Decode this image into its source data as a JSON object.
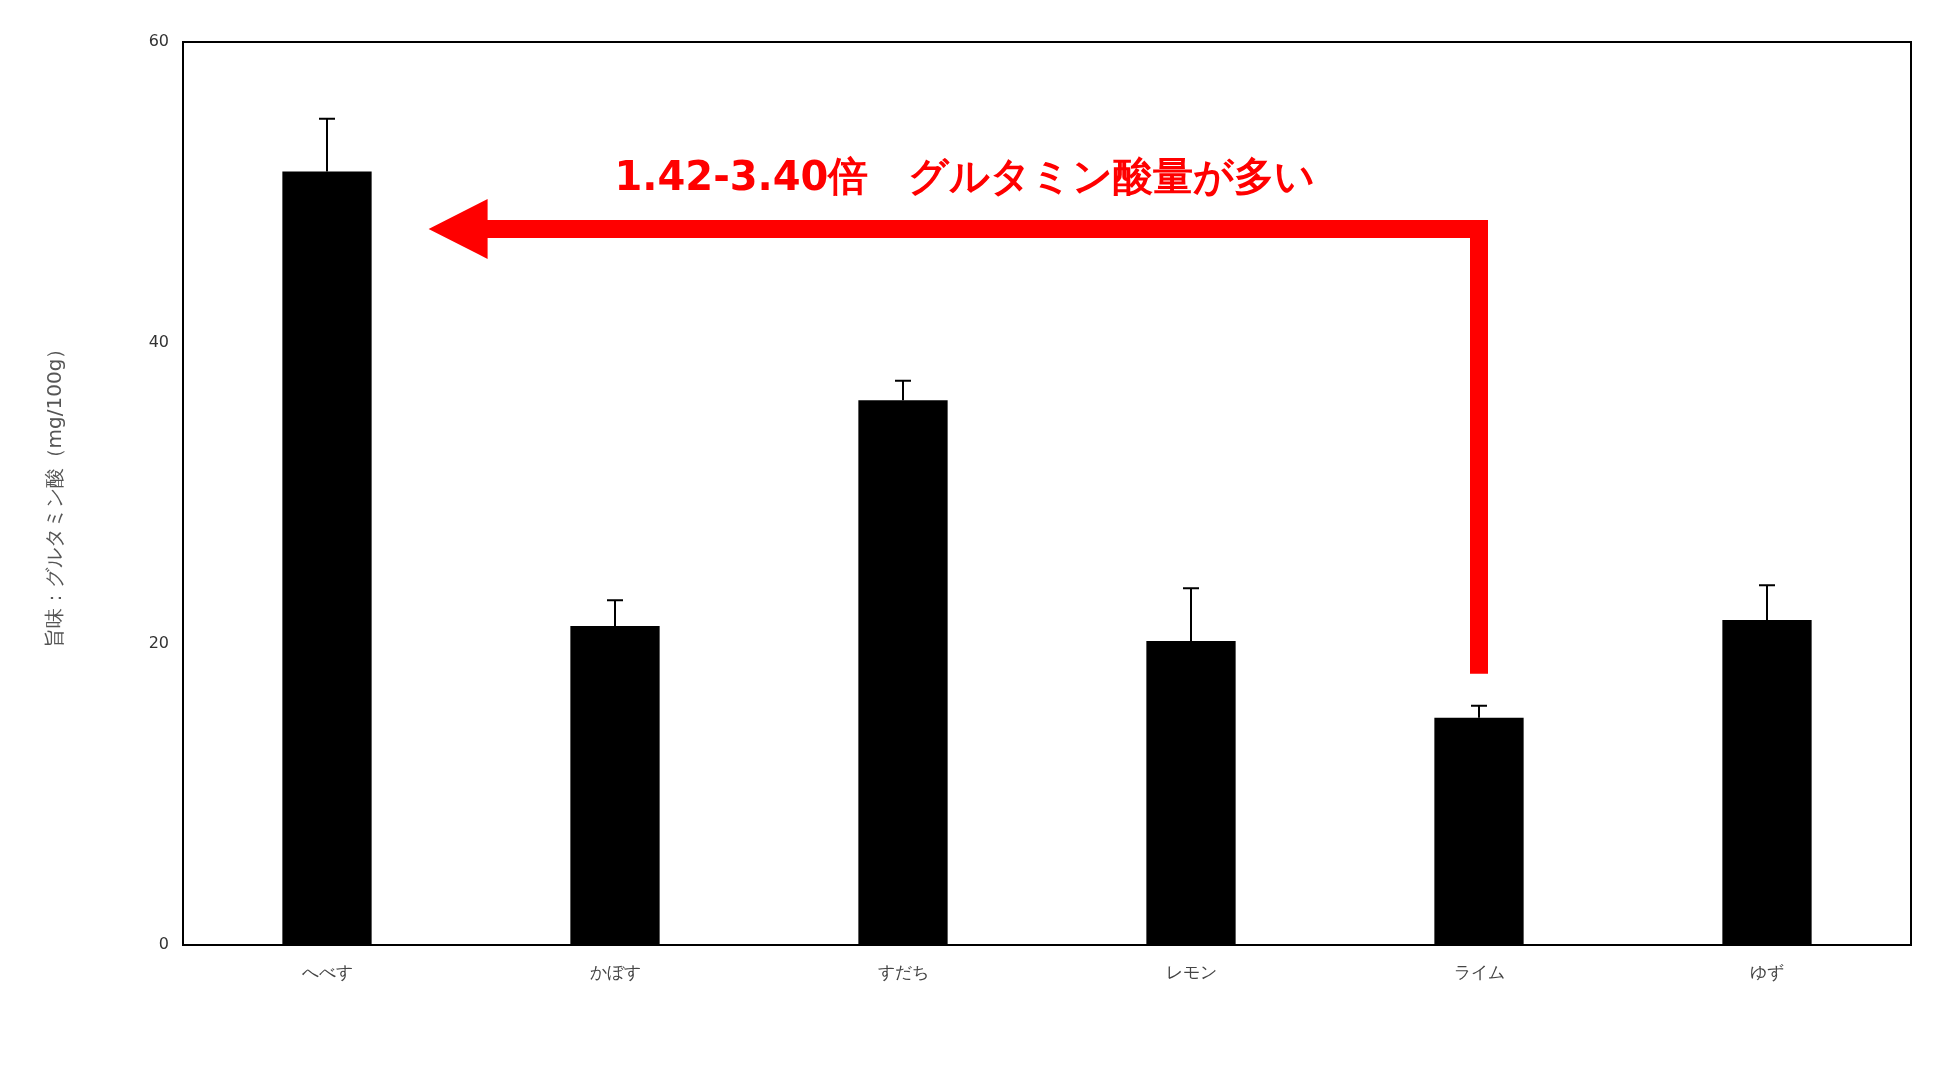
{
  "chart_data": {
    "type": "bar",
    "categories": [
      "へべす",
      "かぼす",
      "すだち",
      "レモン",
      "ライム",
      "ゆず"
    ],
    "values": [
      51.4,
      21.2,
      36.2,
      20.2,
      15.1,
      21.6
    ],
    "errors": [
      [
        51.4,
        54.9
      ],
      [
        21.2,
        22.9
      ],
      [
        36.2,
        37.5
      ],
      [
        20.2,
        23.7
      ],
      [
        15.1,
        15.9
      ],
      [
        21.6,
        23.9
      ]
    ],
    "color": "#000000",
    "ylabel": "旨味：グルタミン酸（mg/100g）",
    "ylim": [
      0,
      60
    ],
    "yticks": [
      0,
      20,
      40,
      60
    ],
    "annotations": [
      "1.42-3.40倍　グルタミン酸量が多い"
    ]
  }
}
